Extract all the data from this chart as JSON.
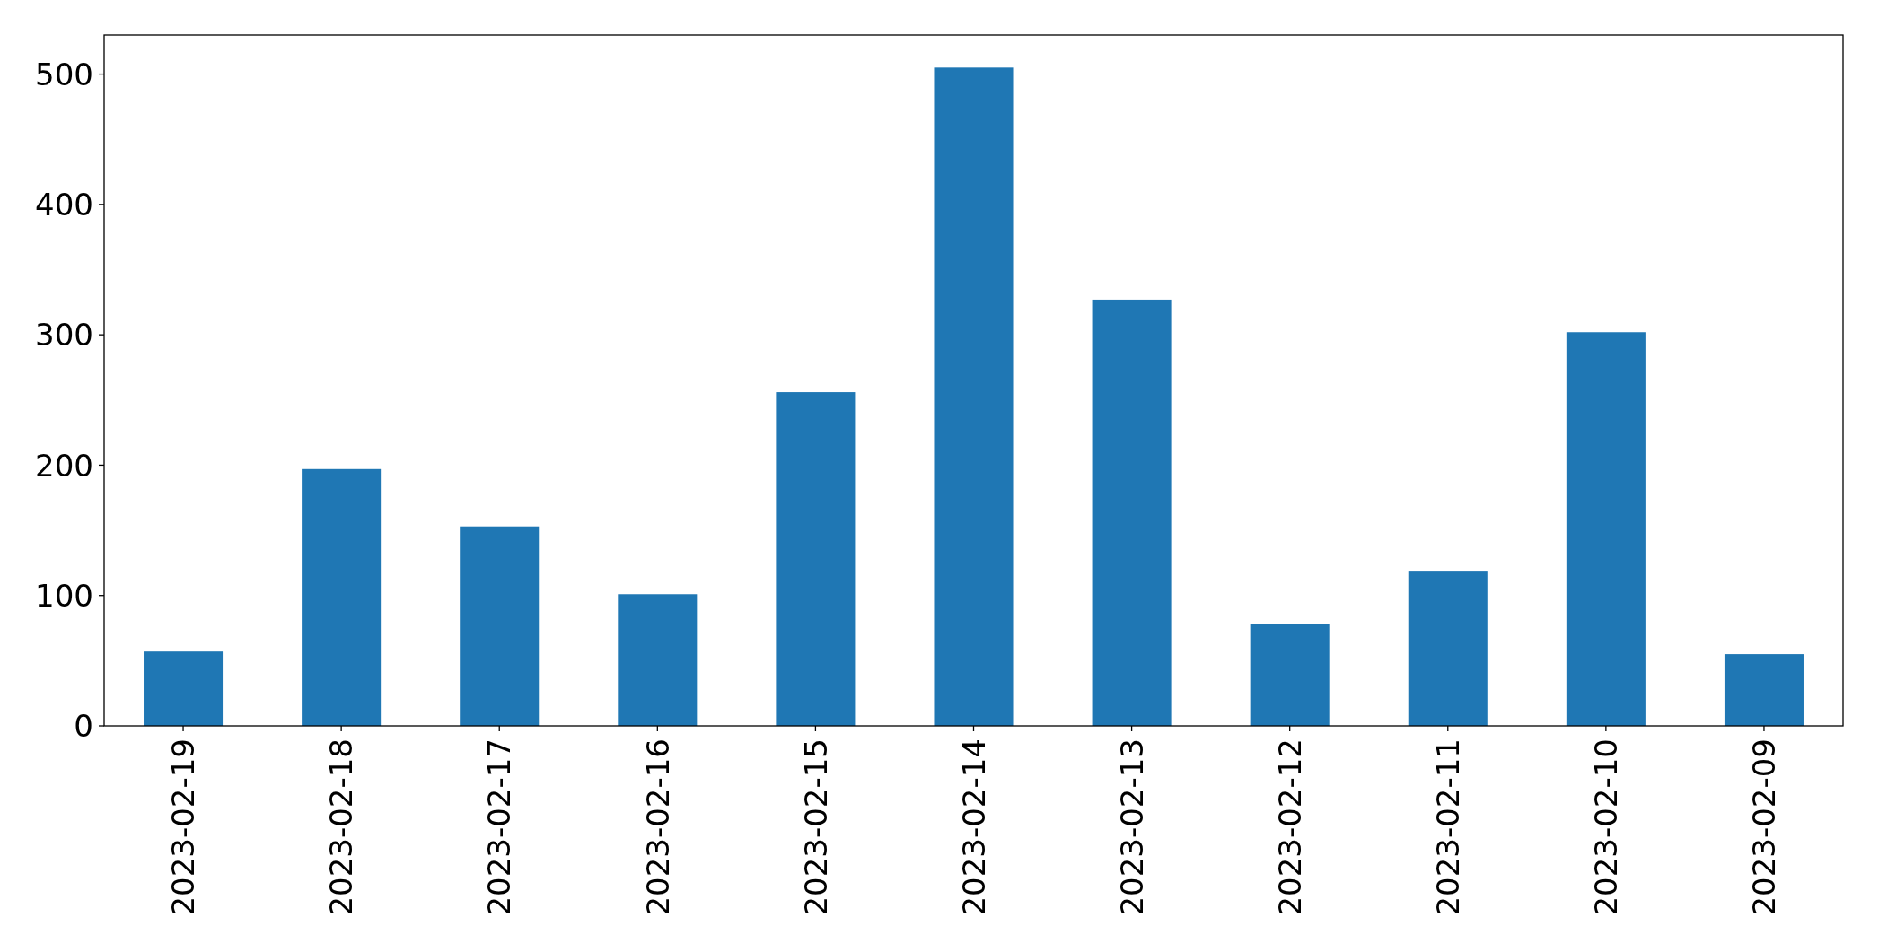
{
  "chart_data": {
    "type": "bar",
    "categories": [
      "2023-02-19",
      "2023-02-18",
      "2023-02-17",
      "2023-02-16",
      "2023-02-15",
      "2023-02-14",
      "2023-02-13",
      "2023-02-12",
      "2023-02-11",
      "2023-02-10",
      "2023-02-09"
    ],
    "values": [
      57,
      197,
      153,
      101,
      256,
      505,
      327,
      78,
      119,
      302,
      55
    ],
    "color": "#1f77b4",
    "ylim": [
      0,
      530
    ],
    "yticks": [
      0,
      100,
      200,
      300,
      400,
      500
    ]
  }
}
